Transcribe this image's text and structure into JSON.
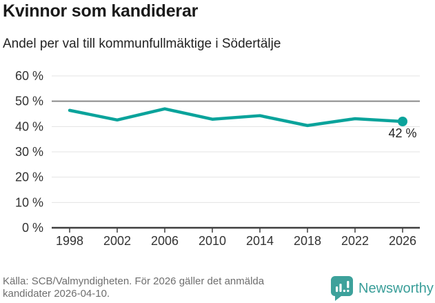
{
  "header": {
    "title": "Kvinnor som kandiderar",
    "subtitle": "Andel per val till kommunfullmäktige i Södertälje"
  },
  "chart_data": {
    "type": "line",
    "title": "Kvinnor som kandiderar",
    "subtitle": "Andel per val till kommunfullmäktige i Södertälje",
    "x": [
      "1998",
      "2002",
      "2006",
      "2010",
      "2014",
      "2018",
      "2022",
      "2026"
    ],
    "values": [
      46.4,
      42.6,
      47.0,
      42.9,
      44.3,
      40.4,
      43.1,
      42.0
    ],
    "ylim": [
      0,
      60
    ],
    "yticks": [
      0,
      10,
      20,
      30,
      40,
      50,
      60
    ],
    "ytick_labels": [
      "0 %",
      "10 %",
      "20 %",
      "30 %",
      "40 %",
      "50 %",
      "60 %"
    ],
    "reference_line": 50,
    "grid": "horizontal",
    "legend": "none",
    "last_point_label": "42 %",
    "line_color": "#0aa39b",
    "axis_color": "#3f3f3f",
    "gridline_color": "#e3e3e3",
    "reference_line_color": "#8a8a8a"
  },
  "footer": {
    "source": "Källa: SCB/Valmyndigheten. För 2026 gäller det anmälda kandidater 2026-04-10.",
    "brand": "Newsworthy",
    "brand_color": "#3a9e99"
  }
}
